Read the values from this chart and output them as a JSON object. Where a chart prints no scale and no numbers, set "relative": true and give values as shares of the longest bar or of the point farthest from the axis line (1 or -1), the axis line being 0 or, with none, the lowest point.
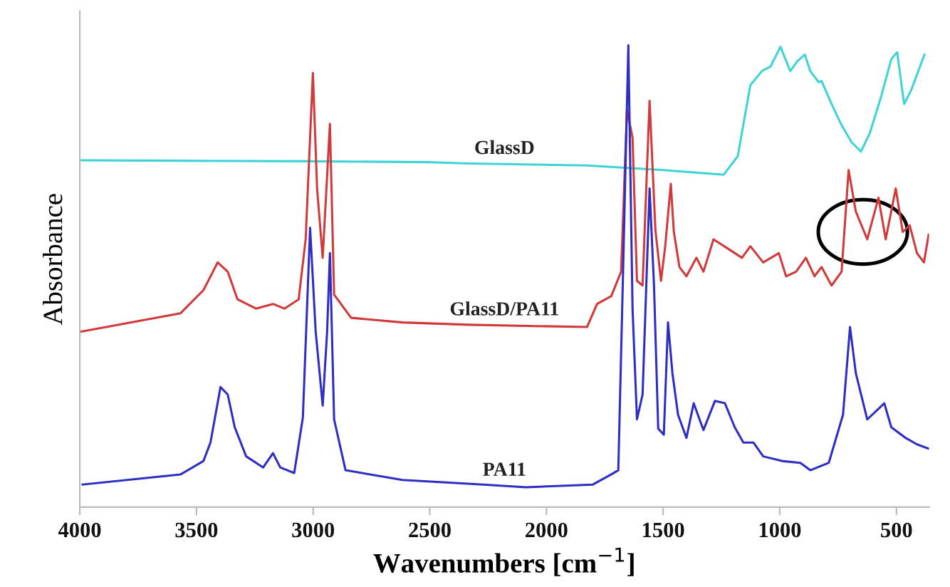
{
  "chart_data": {
    "type": "line",
    "relative": true,
    "xlabel": "Wavenumbers [cm$^{−1}$]",
    "ylabel": "Absorbance",
    "xlim": [
      4000,
      360
    ],
    "xticks": [
      4000,
      3500,
      3000,
      2500,
      2000,
      1500,
      1000,
      500
    ],
    "tick_labels": "x",
    "grid": false,
    "legend": false,
    "series": [
      {
        "name": "GlassD",
        "color": "#3fd3d8",
        "x": [
          3994,
          3500,
          3000,
          2500,
          2331,
          1826,
          1500,
          1240,
          1180,
          1126,
          1077,
          1040,
          997,
          955,
          924,
          893,
          869,
          833,
          821,
          778,
          735,
          692,
          652,
          614,
          565,
          522,
          497,
          467,
          436,
          380
        ],
        "values": [
          0.751,
          0.75,
          0.749,
          0.747,
          0.744,
          0.74,
          0.73,
          0.72,
          0.76,
          0.914,
          0.944,
          0.954,
          0.997,
          0.944,
          0.966,
          0.98,
          0.944,
          0.92,
          0.923,
          0.873,
          0.827,
          0.79,
          0.77,
          0.81,
          0.89,
          0.97,
          0.985,
          0.873,
          0.904,
          0.98
        ]
      },
      {
        "name": "GlassD/PA11",
        "color": "#d03a3a",
        "x": [
          3994,
          3568,
          3470,
          3409,
          3366,
          3324,
          3245,
          3172,
          3123,
          3062,
          3032,
          3001,
          2983,
          2959,
          2928,
          2910,
          2837,
          2617,
          2331,
          1826,
          1783,
          1722,
          1680,
          1655,
          1631,
          1612,
          1588,
          1558,
          1533,
          1509,
          1491,
          1467,
          1454,
          1430,
          1400,
          1357,
          1327,
          1284,
          1223,
          1162,
          1126,
          1071,
          1004,
          973,
          930,
          888,
          851,
          821,
          778,
          735,
          705,
          674,
          625,
          577,
          546,
          503,
          473,
          443,
          412,
          382,
          362
        ],
        "values": [
          0.38,
          0.42,
          0.47,
          0.53,
          0.51,
          0.45,
          0.43,
          0.44,
          0.43,
          0.45,
          0.58,
          0.94,
          0.69,
          0.54,
          0.83,
          0.46,
          0.41,
          0.4,
          0.395,
          0.39,
          0.44,
          0.457,
          0.51,
          0.86,
          0.8,
          0.49,
          0.48,
          0.88,
          0.6,
          0.49,
          0.565,
          0.7,
          0.596,
          0.52,
          0.5,
          0.54,
          0.51,
          0.58,
          0.56,
          0.54,
          0.565,
          0.53,
          0.55,
          0.5,
          0.51,
          0.54,
          0.5,
          0.52,
          0.48,
          0.51,
          0.73,
          0.64,
          0.58,
          0.67,
          0.58,
          0.69,
          0.596,
          0.61,
          0.55,
          0.53,
          0.59
        ]
      },
      {
        "name": "PA11",
        "color": "#2e2ec4",
        "x": [
          3988,
          3568,
          3470,
          3440,
          3397,
          3366,
          3336,
          3287,
          3214,
          3172,
          3141,
          3081,
          3044,
          3013,
          2989,
          2959,
          2940,
          2928,
          2910,
          2861,
          2617,
          2270,
          2088,
          1801,
          1722,
          1692,
          1673,
          1649,
          1631,
          1612,
          1588,
          1558,
          1539,
          1521,
          1497,
          1479,
          1460,
          1436,
          1400,
          1369,
          1327,
          1278,
          1235,
          1193,
          1156,
          1113,
          1071,
          991,
          912,
          869,
          790,
          729,
          699,
          674,
          625,
          552,
          522,
          461,
          412,
          364
        ],
        "values": [
          0.049,
          0.071,
          0.1,
          0.14,
          0.26,
          0.244,
          0.173,
          0.11,
          0.086,
          0.117,
          0.086,
          0.074,
          0.194,
          0.605,
          0.38,
          0.22,
          0.38,
          0.55,
          0.19,
          0.08,
          0.059,
          0.049,
          0.043,
          0.049,
          0.071,
          0.08,
          0.48,
          1.0,
          0.43,
          0.19,
          0.244,
          0.69,
          0.48,
          0.17,
          0.157,
          0.4,
          0.29,
          0.2,
          0.15,
          0.225,
          0.167,
          0.23,
          0.225,
          0.173,
          0.14,
          0.14,
          0.11,
          0.1,
          0.096,
          0.08,
          0.096,
          0.2,
          0.39,
          0.29,
          0.19,
          0.225,
          0.173,
          0.15,
          0.136,
          0.127
        ]
      }
    ]
  }
}
